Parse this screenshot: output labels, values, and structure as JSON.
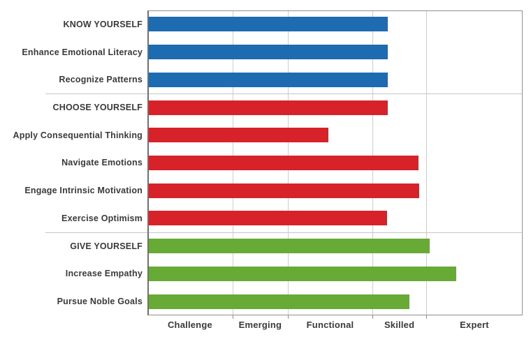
{
  "chart_data": {
    "type": "bar",
    "orientation": "horizontal",
    "title": "",
    "grid": true,
    "legend": "none",
    "colors": {
      "know": "#1d6bb1",
      "choose": "#d7222a",
      "give": "#68aa36"
    },
    "rows": [
      {
        "label": "KNOW YOURSELF",
        "group": "know",
        "value_pct_of_axis": 64.0,
        "zone": "Skilled",
        "is_section_header": true
      },
      {
        "label": "Enhance Emotional Literacy",
        "group": "know",
        "value_pct_of_axis": 64.0,
        "zone": "Skilled",
        "is_section_header": false
      },
      {
        "label": "Recognize Patterns",
        "group": "know",
        "value_pct_of_axis": 64.1,
        "zone": "Skilled",
        "is_section_header": false
      },
      {
        "label": "CHOOSE YOURSELF",
        "group": "choose",
        "value_pct_of_axis": 64.1,
        "zone": "Skilled",
        "is_section_header": true
      },
      {
        "label": "Apply Consequential Thinking",
        "group": "choose",
        "value_pct_of_axis": 48.2,
        "zone": "Functional",
        "is_section_header": false
      },
      {
        "label": "Navigate Emotions",
        "group": "choose",
        "value_pct_of_axis": 72.3,
        "zone": "Skilled",
        "is_section_header": false
      },
      {
        "label": "Engage Intrinsic Motivation",
        "group": "choose",
        "value_pct_of_axis": 72.4,
        "zone": "Skilled",
        "is_section_header": false
      },
      {
        "label": "Exercise Optimism",
        "group": "choose",
        "value_pct_of_axis": 63.9,
        "zone": "Skilled",
        "is_section_header": false
      },
      {
        "label": "GIVE YOURSELF",
        "group": "give",
        "value_pct_of_axis": 75.2,
        "zone": "Expert",
        "is_section_header": true
      },
      {
        "label": "Increase Empathy",
        "group": "give",
        "value_pct_of_axis": 82.3,
        "zone": "Expert",
        "is_section_header": false
      },
      {
        "label": "Pursue Noble Goals",
        "group": "give",
        "value_pct_of_axis": 69.8,
        "zone": "Skilled",
        "is_section_header": false
      }
    ],
    "x_axis": {
      "zone_labels": [
        "Challenge",
        "Emerging",
        "Functional",
        "Skilled",
        "Expert"
      ],
      "zone_boundaries_pct": [
        0,
        22.7,
        37.4,
        60.0,
        74.3,
        100
      ],
      "tick_marks": true
    }
  }
}
